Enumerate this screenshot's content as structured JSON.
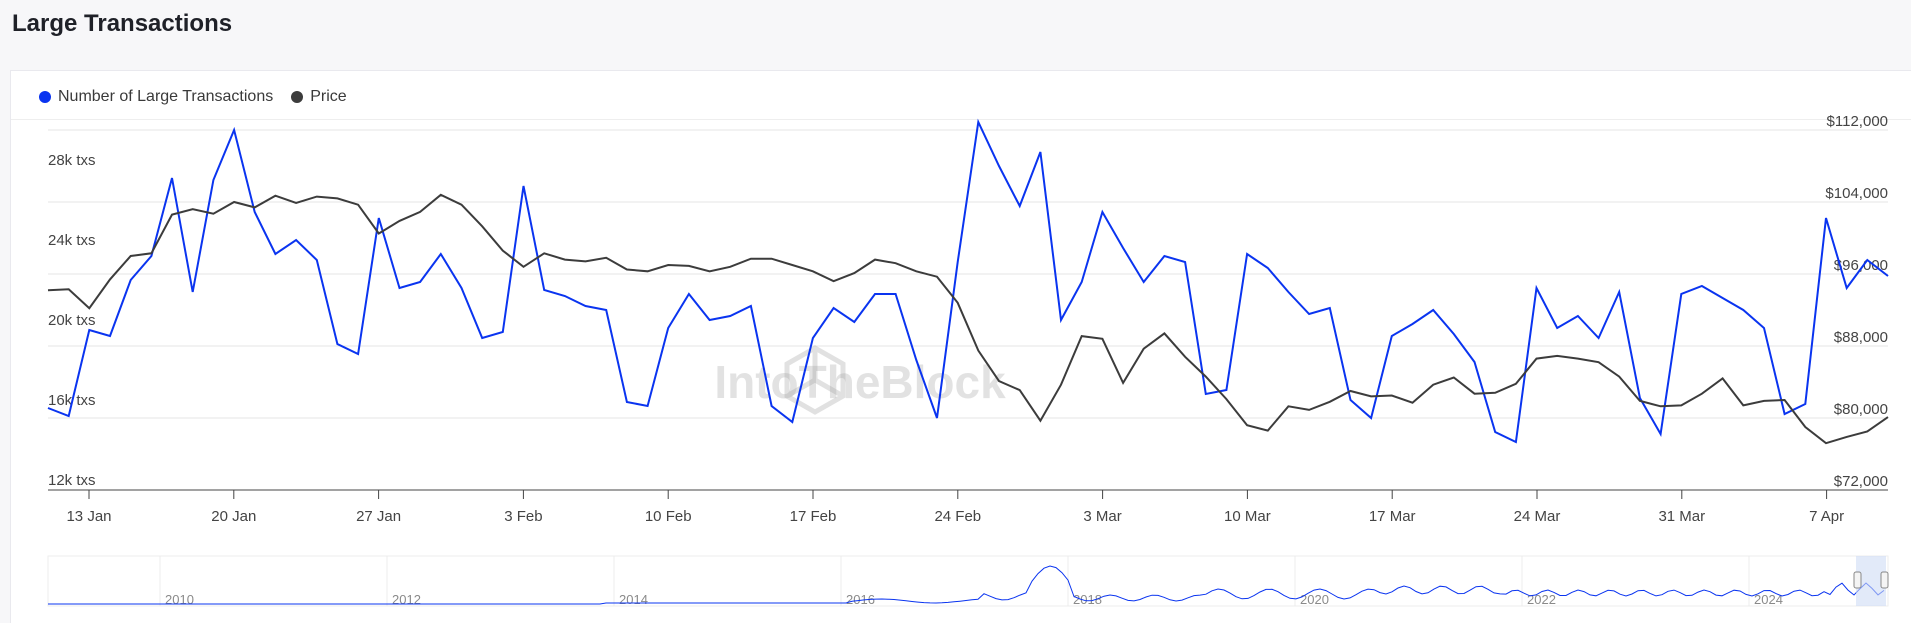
{
  "page": {
    "title": "Large Transactions"
  },
  "legend": [
    {
      "label": "Number of Large Transactions",
      "color": "#0a34f0"
    },
    {
      "label": "Price",
      "color": "#3c3c3c"
    }
  ],
  "watermark": "IntoTheBlock",
  "chart_data": {
    "type": "line",
    "x_labels": [
      "13 Jan",
      "20 Jan",
      "27 Jan",
      "3 Feb",
      "10 Feb",
      "17 Feb",
      "24 Feb",
      "3 Mar",
      "10 Mar",
      "17 Mar",
      "24 Mar",
      "31 Mar",
      "7 Apr"
    ],
    "y_left": {
      "ticks": [
        "12k txs",
        "16k txs",
        "20k txs",
        "24k txs",
        "28k txs"
      ],
      "min": 12000,
      "max": 30000
    },
    "y_right": {
      "ticks": [
        "$72,000",
        "$80,000",
        "$88,000",
        "$96,000",
        "$104,000",
        "$112,000"
      ],
      "min": 72000,
      "max": 112000
    },
    "series": [
      {
        "name": "Number of Large Transactions",
        "axis": "left",
        "color": "#0a34f0",
        "values": [
          16100,
          15700,
          20000,
          19700,
          22500,
          23700,
          27600,
          21900,
          27500,
          30000,
          25900,
          23800,
          24500,
          23500,
          19300,
          18800,
          25600,
          22100,
          22400,
          23800,
          22100,
          19600,
          19900,
          27200,
          22000,
          21700,
          21200,
          21000,
          16400,
          16200,
          20100,
          21800,
          20500,
          20700,
          21200,
          16200,
          15400,
          19600,
          21100,
          20400,
          21800,
          21800,
          18500,
          15600,
          23400,
          30400,
          28200,
          26200,
          28900,
          20500,
          22400,
          25900,
          24100,
          22400,
          23700,
          23400,
          16800,
          17000,
          23800,
          23100,
          21900,
          20800,
          21100,
          16500,
          15600,
          19700,
          20300,
          21000,
          19800,
          18400,
          14900,
          14400,
          22100,
          20100,
          20700,
          19600,
          21900,
          16600,
          14800,
          21800,
          22200,
          21600,
          21000,
          20100,
          15800,
          16300,
          25600,
          22100,
          23500,
          22700
        ]
      },
      {
        "name": "Price",
        "axis": "right",
        "color": "#3c3c3c",
        "values": [
          94200,
          94300,
          92200,
          95400,
          98000,
          98300,
          102600,
          103200,
          102700,
          104000,
          103400,
          104700,
          103900,
          104600,
          104400,
          103700,
          100500,
          101900,
          102900,
          104800,
          103700,
          101300,
          98600,
          96800,
          98300,
          97600,
          97400,
          97800,
          96500,
          96300,
          97000,
          96900,
          96300,
          96800,
          97700,
          97700,
          97000,
          96300,
          95200,
          96100,
          97600,
          97200,
          96300,
          95700,
          92800,
          87500,
          84100,
          83100,
          79700,
          83700,
          89100,
          88800,
          83900,
          87700,
          89400,
          86800,
          84600,
          82100,
          79200,
          78600,
          81300,
          80900,
          81800,
          83000,
          82400,
          82500,
          81700,
          83700,
          84500,
          82700,
          82800,
          83800,
          86600,
          86900,
          86600,
          86200,
          84600,
          81900,
          81300,
          81400,
          82700,
          84400,
          81400,
          81900,
          82000,
          79000,
          77200,
          77900,
          78500,
          80100
        ]
      }
    ],
    "navigator": {
      "year_labels": [
        "2010",
        "2012",
        "2014",
        "2016",
        "2018",
        "2020",
        "2022",
        "2024"
      ]
    },
    "grid": true,
    "legend_position": "top-left"
  }
}
